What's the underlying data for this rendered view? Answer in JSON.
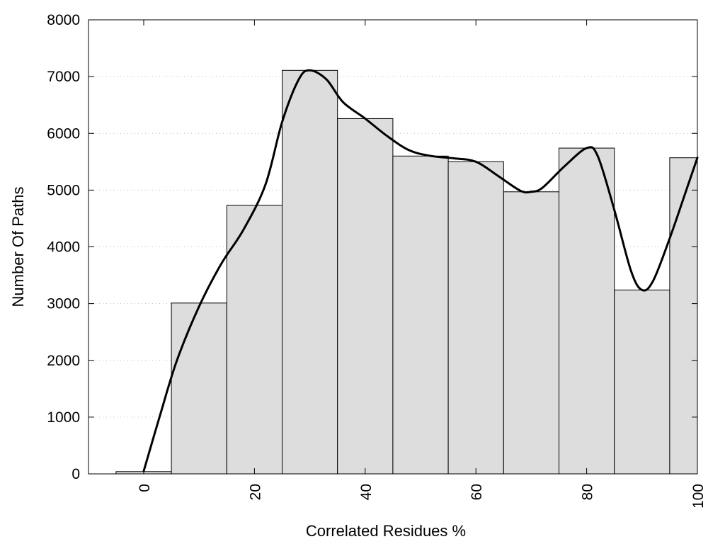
{
  "chart_data": {
    "type": "bar",
    "title": "",
    "xlabel": "Correlated Residues %",
    "ylabel": "Number Of Paths",
    "bin_width": 10,
    "x": [
      0,
      10,
      20,
      30,
      40,
      50,
      60,
      70,
      80,
      90,
      100
    ],
    "values": [
      40,
      3010,
      4730,
      7110,
      6260,
      5600,
      5500,
      4970,
      5740,
      3240,
      5570
    ],
    "xlim": [
      -10,
      100
    ],
    "ylim": [
      0,
      8000
    ],
    "xticks": [
      0,
      20,
      40,
      60,
      80,
      100
    ],
    "yticks": [
      0,
      1000,
      2000,
      3000,
      4000,
      5000,
      6000,
      7000,
      8000
    ],
    "xtick_rotation": -90,
    "grid": "horizontal dotted",
    "legend": "none",
    "series": [
      {
        "type": "bar",
        "values": [
          40,
          3010,
          4730,
          7110,
          6260,
          5600,
          5500,
          4970,
          5740,
          3240,
          5570
        ],
        "color": "#dddddd"
      },
      {
        "type": "line",
        "style": "smooth",
        "x": [
          0,
          3,
          6,
          10,
          14,
          18,
          22,
          25,
          28,
          30,
          33,
          36,
          40,
          44,
          48,
          52,
          56,
          60,
          64,
          68,
          70,
          72,
          76,
          80,
          82,
          85,
          88,
          90,
          92,
          95,
          98,
          100
        ],
        "values": [
          50,
          1050,
          2000,
          2950,
          3700,
          4300,
          5100,
          6200,
          6950,
          7110,
          6950,
          6550,
          6260,
          5950,
          5700,
          5600,
          5560,
          5500,
          5250,
          4990,
          4970,
          5040,
          5420,
          5740,
          5600,
          4650,
          3580,
          3240,
          3400,
          4150,
          5000,
          5570
        ],
        "color": "#000000"
      }
    ]
  }
}
